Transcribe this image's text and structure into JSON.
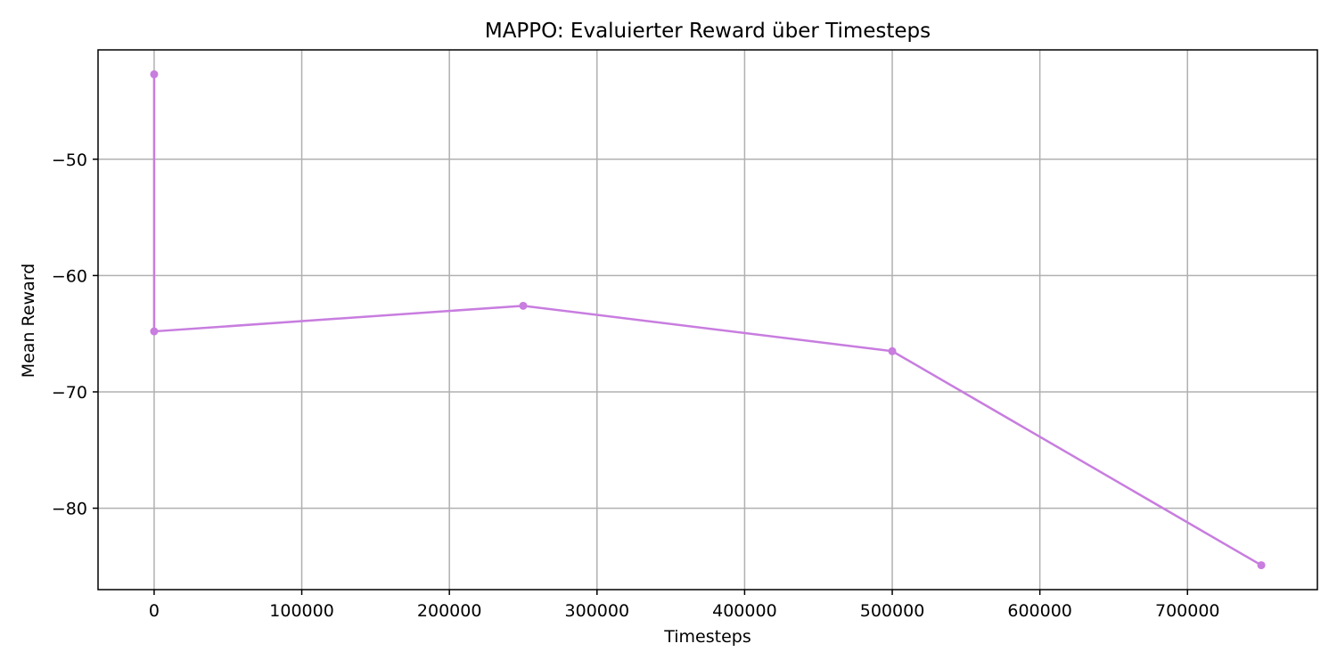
{
  "chart_data": {
    "type": "line",
    "title": "MAPPO: Evaluierter Reward über Timesteps",
    "xlabel": "Timesteps",
    "ylabel": "Mean Reward",
    "xlim": [
      -38000,
      788000
    ],
    "ylim": [
      -87.0,
      -40.6
    ],
    "grid": true,
    "xticks": [
      0,
      100000,
      200000,
      300000,
      400000,
      500000,
      600000,
      700000
    ],
    "xtick_labels": [
      "0",
      "100000",
      "200000",
      "300000",
      "400000",
      "500000",
      "600000",
      "700000"
    ],
    "yticks": [
      -50,
      -60,
      -70,
      -80
    ],
    "ytick_labels": [
      "−50",
      "−60",
      "−70",
      "−80"
    ],
    "series": [
      {
        "color": "#c87ddf",
        "points": [
          {
            "x": 0,
            "y": -42.7
          },
          {
            "x": 0,
            "y": -64.8
          },
          {
            "x": 250000,
            "y": -62.6
          },
          {
            "x": 500000,
            "y": -66.5
          },
          {
            "x": 750000,
            "y": -84.9
          }
        ]
      }
    ]
  }
}
